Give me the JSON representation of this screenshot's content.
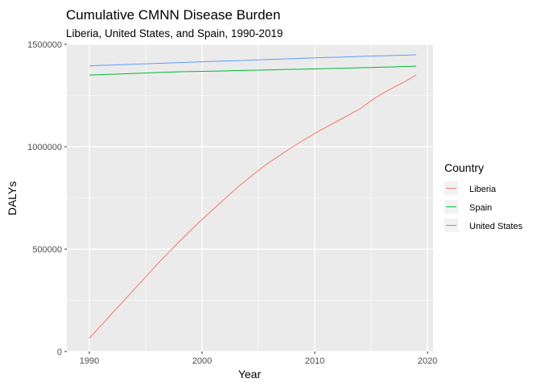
{
  "chart_data": {
    "type": "line",
    "title": "Cumulative CMNN Disease Burden",
    "subtitle": "Liberia, United States, and Spain, 1990-2019",
    "xlabel": "Year",
    "ylabel": "DALYs",
    "xlim": [
      1988,
      2020.5
    ],
    "ylim": [
      0,
      1500000
    ],
    "x_ticks": [
      1990,
      2000,
      2010,
      2020
    ],
    "x_tick_labels": [
      "1990",
      "2000",
      "2010",
      "2020"
    ],
    "y_ticks": [
      0,
      500000,
      1000000,
      1500000
    ],
    "y_tick_labels": [
      "0",
      "500000",
      "1000000",
      "1500000"
    ],
    "grid": true,
    "legend": {
      "title": "Country",
      "position": "right"
    },
    "x": [
      1990,
      1991,
      1992,
      1993,
      1994,
      1995,
      1996,
      1997,
      1998,
      1999,
      2000,
      2001,
      2002,
      2003,
      2004,
      2005,
      2006,
      2007,
      2008,
      2009,
      2010,
      2011,
      2012,
      2013,
      2014,
      2015,
      2016,
      2017,
      2018,
      2019
    ],
    "series": [
      {
        "name": "Liberia",
        "color": "#F8766D",
        "values": [
          65000,
          125000,
          185000,
          245000,
          305000,
          365000,
          425000,
          482000,
          538000,
          592000,
          645000,
          695000,
          745000,
          795000,
          840000,
          885000,
          925000,
          962000,
          998000,
          1032000,
          1065000,
          1095000,
          1125000,
          1155000,
          1185000,
          1225000,
          1260000,
          1290000,
          1318000,
          1350000
        ]
      },
      {
        "name": "Spain",
        "color": "#00BA38",
        "values": [
          1350000,
          1352000,
          1354000,
          1356000,
          1358000,
          1360000,
          1362000,
          1364000,
          1366000,
          1367000,
          1368000,
          1369000,
          1370000,
          1372000,
          1373000,
          1374000,
          1375000,
          1377000,
          1378000,
          1379000,
          1380000,
          1382000,
          1383000,
          1384000,
          1386000,
          1387000,
          1389000,
          1390000,
          1392000,
          1393000
        ]
      },
      {
        "name": "United States",
        "color": "#619CFF",
        "values": [
          1395000,
          1397000,
          1399000,
          1401000,
          1403000,
          1405000,
          1407000,
          1409000,
          1411000,
          1413000,
          1415000,
          1417000,
          1419000,
          1420000,
          1422000,
          1424000,
          1426000,
          1428000,
          1430000,
          1432000,
          1434000,
          1436000,
          1437000,
          1439000,
          1441000,
          1443000,
          1444000,
          1446000,
          1447000,
          1449000
        ]
      }
    ]
  }
}
